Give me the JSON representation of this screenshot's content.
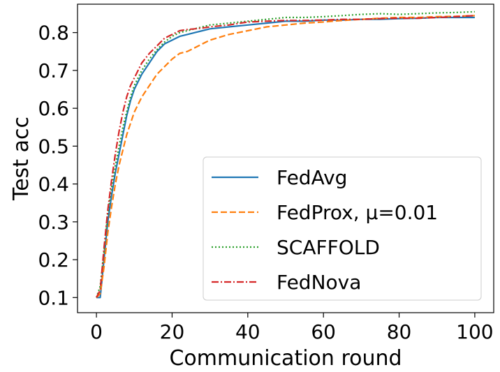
{
  "chart_data": {
    "type": "line",
    "title": "",
    "xlabel": "Communication round",
    "ylabel": "Test acc",
    "xlim": [
      -5,
      105
    ],
    "ylim": [
      0.06,
      0.875
    ],
    "xticks": [
      0,
      20,
      40,
      60,
      80,
      100
    ],
    "yticks": [
      0.1,
      0.2,
      0.3,
      0.4,
      0.5,
      0.6,
      0.7,
      0.8
    ],
    "ytick_labels": [
      "0.1",
      "0.2",
      "0.3",
      "0.4",
      "0.5",
      "0.6",
      "0.7",
      "0.8"
    ],
    "grid": false,
    "legend_position": "lower-right",
    "series": [
      {
        "name": "FedAvg",
        "color": "#1f77b4",
        "style": "solid",
        "x": [
          0,
          1,
          2,
          3,
          4,
          5,
          6,
          7,
          8,
          9,
          10,
          12,
          14,
          16,
          18,
          20,
          22,
          24,
          26,
          28,
          30,
          35,
          40,
          45,
          50,
          55,
          60,
          65,
          70,
          75,
          80,
          85,
          90,
          95,
          100
        ],
        "y": [
          0.1,
          0.1,
          0.2,
          0.3,
          0.37,
          0.43,
          0.48,
          0.53,
          0.58,
          0.62,
          0.65,
          0.69,
          0.72,
          0.75,
          0.77,
          0.78,
          0.79,
          0.795,
          0.8,
          0.805,
          0.81,
          0.815,
          0.82,
          0.825,
          0.83,
          0.83,
          0.833,
          0.833,
          0.835,
          0.835,
          0.837,
          0.838,
          0.84,
          0.84,
          0.84
        ]
      },
      {
        "name": "FedProx, μ=0.01",
        "color": "#ff7f0e",
        "style": "dashed",
        "x": [
          0,
          1,
          2,
          3,
          4,
          5,
          6,
          7,
          8,
          9,
          10,
          12,
          14,
          16,
          18,
          20,
          22,
          24,
          26,
          28,
          30,
          35,
          40,
          45,
          50,
          55,
          60,
          65,
          70,
          75,
          80,
          85,
          90,
          95,
          100
        ],
        "y": [
          0.1,
          0.11,
          0.18,
          0.27,
          0.34,
          0.4,
          0.45,
          0.49,
          0.53,
          0.56,
          0.59,
          0.63,
          0.66,
          0.69,
          0.71,
          0.73,
          0.745,
          0.75,
          0.76,
          0.77,
          0.78,
          0.795,
          0.805,
          0.815,
          0.82,
          0.825,
          0.828,
          0.832,
          0.835,
          0.838,
          0.84,
          0.84,
          0.842,
          0.843,
          0.845
        ]
      },
      {
        "name": "SCAFFOLD",
        "color": "#2ca02c",
        "style": "dotted",
        "x": [
          0,
          1,
          2,
          3,
          4,
          5,
          6,
          7,
          8,
          9,
          10,
          12,
          14,
          16,
          18,
          20,
          22,
          24,
          26,
          28,
          30,
          35,
          40,
          45,
          50,
          55,
          60,
          65,
          70,
          75,
          80,
          85,
          90,
          95,
          100
        ],
        "y": [
          0.1,
          0.13,
          0.22,
          0.32,
          0.39,
          0.45,
          0.5,
          0.55,
          0.59,
          0.63,
          0.66,
          0.7,
          0.73,
          0.755,
          0.775,
          0.79,
          0.8,
          0.805,
          0.81,
          0.815,
          0.82,
          0.825,
          0.83,
          0.835,
          0.84,
          0.84,
          0.842,
          0.845,
          0.848,
          0.85,
          0.848,
          0.85,
          0.852,
          0.853,
          0.855
        ]
      },
      {
        "name": "FedNova",
        "color": "#d62728",
        "style": "dashdot",
        "x": [
          0,
          1,
          2,
          3,
          4,
          5,
          6,
          7,
          8,
          9,
          10,
          12,
          14,
          16,
          18,
          20,
          22,
          24,
          26,
          28,
          30,
          35,
          40,
          45,
          50,
          55,
          60,
          65,
          70,
          75,
          80,
          85,
          90,
          95,
          100
        ],
        "y": [
          0.1,
          0.12,
          0.23,
          0.33,
          0.41,
          0.48,
          0.54,
          0.59,
          0.63,
          0.66,
          0.68,
          0.72,
          0.745,
          0.765,
          0.785,
          0.795,
          0.805,
          0.808,
          0.81,
          0.812,
          0.815,
          0.82,
          0.828,
          0.83,
          0.832,
          0.832,
          0.833,
          0.835,
          0.835,
          0.837,
          0.838,
          0.838,
          0.84,
          0.842,
          0.845
        ]
      }
    ]
  }
}
